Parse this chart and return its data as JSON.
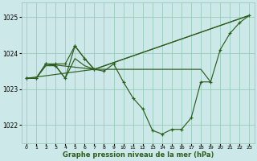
{
  "background_color": "#cce8e8",
  "grid_color": "#99ccbb",
  "line_color": "#2d5e1e",
  "xlabel": "Graphe pression niveau de la mer (hPa)",
  "ylim": [
    1021.5,
    1025.4
  ],
  "xlim": [
    -0.5,
    23.5
  ],
  "yticks": [
    1022,
    1023,
    1024,
    1025
  ],
  "xticks": [
    0,
    1,
    2,
    3,
    4,
    5,
    6,
    7,
    8,
    9,
    10,
    11,
    12,
    13,
    14,
    15,
    16,
    17,
    18,
    19,
    20,
    21,
    22,
    23
  ],
  "curve1_x": [
    0,
    1,
    2,
    3,
    4,
    5,
    6,
    7,
    8,
    9,
    10,
    11,
    12,
    13,
    14,
    15,
    16,
    17,
    18,
    19,
    20,
    21,
    22,
    23
  ],
  "curve1_y": [
    1023.3,
    1023.3,
    1023.7,
    1023.65,
    1023.3,
    1024.2,
    1023.85,
    1023.55,
    1023.5,
    1023.7,
    1023.2,
    1022.75,
    1022.45,
    1021.85,
    1021.75,
    1021.88,
    1021.88,
    1022.2,
    1023.2,
    1023.2,
    1024.1,
    1024.55,
    1024.85,
    1025.05
  ],
  "curve2_x": [
    0,
    1,
    2,
    3,
    4,
    5,
    6,
    7
  ],
  "curve2_y": [
    1023.3,
    1023.3,
    1023.7,
    1023.7,
    1023.7,
    1024.2,
    1023.85,
    1023.55
  ],
  "trend1_x": [
    0,
    7,
    23
  ],
  "trend1_y": [
    1023.3,
    1023.55,
    1025.05
  ],
  "trend2_x": [
    2,
    7,
    23
  ],
  "trend2_y": [
    1023.7,
    1023.55,
    1025.05
  ],
  "flat_x": [
    0,
    1,
    2,
    3,
    4,
    5,
    6,
    7,
    8,
    9,
    10,
    11,
    12,
    13,
    14,
    15,
    16,
    17,
    18,
    19
  ],
  "flat_y": [
    1023.3,
    1023.3,
    1023.65,
    1023.65,
    1023.3,
    1023.85,
    1023.65,
    1023.55,
    1023.55,
    1023.55,
    1023.55,
    1023.55,
    1023.55,
    1023.55,
    1023.55,
    1023.55,
    1023.55,
    1023.55,
    1023.55,
    1023.2
  ]
}
